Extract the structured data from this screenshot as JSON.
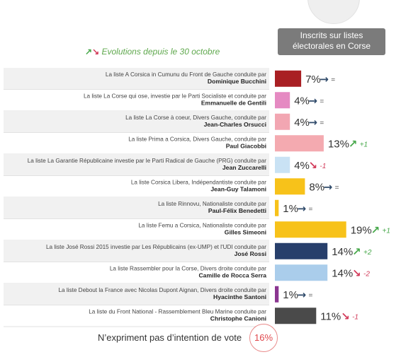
{
  "badge": {
    "line1": "Inscrits  sur listes",
    "line2": "électorales en Corse"
  },
  "evolution_legend": {
    "text": "Evolutions depuis le 30 octobre",
    "up_icon": "arrow-up-right-icon",
    "down_icon": "arrow-down-right-icon"
  },
  "colors": {
    "up": "#47a84a",
    "down": "#d23b5a",
    "flat": "#2f4a6a"
  },
  "footer": {
    "label": "N’expriment pas d’intention de vote",
    "value": "16%"
  },
  "chart_data": {
    "type": "bar",
    "orientation": "horizontal",
    "unit": "%",
    "xlim": [
      0,
      25
    ],
    "categories": [
      {
        "line1": "La liste A Corsica in Cumunu du Front de Gauche conduite par",
        "line2": "Dominique Bucchini",
        "value": 7,
        "label": "7%",
        "trend": "flat",
        "change": "=",
        "color": "#a91f23"
      },
      {
        "line1": "La liste La Corse qui ose, investie par le Parti Socialiste et conduite par",
        "line2": "Emmanuelle de Gentili",
        "value": 4,
        "label": "4%",
        "trend": "flat",
        "change": "=",
        "color": "#e58ac2"
      },
      {
        "line1": "La liste La Corse à coeur, Divers Gauche, conduite par",
        "line2": "Jean-Charles Orsucci",
        "value": 4,
        "label": "4%",
        "trend": "flat",
        "change": "=",
        "color": "#f2a6b2"
      },
      {
        "line1": "La liste Prima a Corsica, Divers Gauche, conduite par",
        "line2": "Paul Giacobbi",
        "value": 13,
        "label": "13%",
        "trend": "up",
        "change": "+1",
        "color": "#f4aab0"
      },
      {
        "line1": "La liste La Garantie Républicaine investie par le Parti Radical de Gauche (PRG) conduite par",
        "line2": "Jean Zuccarelli",
        "value": 4,
        "label": "4%",
        "trend": "down",
        "change": "-1",
        "color": "#c9e2f4"
      },
      {
        "line1": "La liste Corsica Libera, Indépendantiste conduite par",
        "line2": "Jean-Guy Talamoni",
        "value": 8,
        "label": "8%",
        "trend": "flat",
        "change": "=",
        "color": "#f7c21a"
      },
      {
        "line1": "La liste Rinnovu, Nationaliste conduite par",
        "line2": "Paul-Félix Benedetti",
        "value": 1,
        "label": "1%",
        "trend": "flat",
        "change": "=",
        "color": "#f7c21a"
      },
      {
        "line1": "La liste Femu a Corsica, Nationaliste conduite par",
        "line2": "Gilles Simeoni",
        "value": 19,
        "label": "19%",
        "trend": "up",
        "change": "+1",
        "color": "#f7c21a"
      },
      {
        "line1": "La liste José Rossi 2015 investie par Les Républicains (ex-UMP) et l'UDI conduite par",
        "line2": "José Rossi",
        "value": 14,
        "label": "14%",
        "trend": "up",
        "change": "+2",
        "color": "#273f6b"
      },
      {
        "line1": "La liste Rassembler pour la Corse, Divers droite conduite par",
        "line2": "Camille de Rocca Serra",
        "value": 14,
        "label": "14%",
        "trend": "down",
        "change": "-2",
        "color": "#aacdeb"
      },
      {
        "line1": "La liste Debout la France avec Nicolas Dupont Aignan, Divers droite conduite par",
        "line2": "Hyacinthe Santoni",
        "value": 1,
        "label": "1%",
        "trend": "flat",
        "change": "=",
        "color": "#8a3590"
      },
      {
        "line1": "La liste du Front National - Rassemblement Bleu Marine conduite par",
        "line2": "Christophe Canioni",
        "value": 11,
        "label": "11%",
        "trend": "down",
        "change": "-1",
        "color": "#4a4a4a"
      }
    ]
  }
}
